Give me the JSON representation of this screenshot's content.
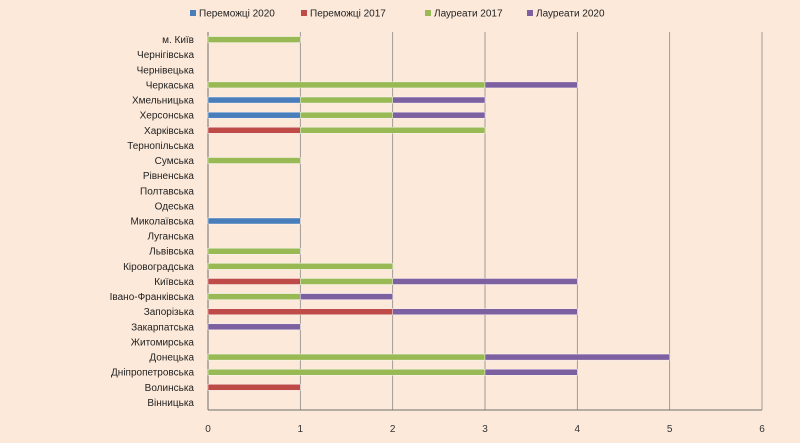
{
  "chart_data": {
    "type": "bar",
    "orientation": "horizontal",
    "stacked": true,
    "categories": [
      "м. Київ",
      "Чернігівська",
      "Чернівецька",
      "Черкаська",
      "Хмельницька",
      "Херсонська",
      "Харківська",
      "Тернопільська",
      "Сумська",
      "Рівненська",
      "Полтавська",
      "Одеська",
      "Миколаївська",
      "Луганська",
      "Львівська",
      "Кіровоградська",
      "Київська",
      "Івано-Франківська",
      "Запорізька",
      "Закарпатська",
      "Житомирська",
      "Донецька",
      "Дніпропетровська",
      "Волинська",
      "Вінницька"
    ],
    "series": [
      {
        "name": "Переможці 2020",
        "color": "#4a7ebb",
        "values": [
          0,
          0,
          0,
          0,
          1,
          1,
          0,
          0,
          0,
          0,
          0,
          0,
          1,
          0,
          0,
          0,
          0,
          0,
          0,
          0,
          0,
          0,
          0,
          0,
          0
        ]
      },
      {
        "name": "Переможці 2017",
        "color": "#be4b48",
        "values": [
          0,
          0,
          0,
          0,
          0,
          0,
          1,
          0,
          0,
          0,
          0,
          0,
          0,
          0,
          0,
          0,
          1,
          0,
          2,
          0,
          0,
          0,
          0,
          1,
          0
        ]
      },
      {
        "name": "Лауреати 2017",
        "color": "#98b954",
        "values": [
          1,
          0,
          0,
          3,
          1,
          1,
          2,
          0,
          1,
          0,
          0,
          0,
          0,
          0,
          1,
          2,
          1,
          1,
          0,
          0,
          0,
          3,
          3,
          0,
          0
        ]
      },
      {
        "name": "Лауреати 2020",
        "color": "#7d60a0",
        "values": [
          0,
          0,
          0,
          1,
          1,
          1,
          0,
          0,
          0,
          0,
          0,
          0,
          0,
          0,
          0,
          0,
          2,
          1,
          2,
          1,
          0,
          2,
          1,
          0,
          0
        ]
      }
    ],
    "xlim": [
      0,
      6
    ],
    "xticks": [
      0,
      1,
      2,
      3,
      4,
      5,
      6
    ],
    "grid": true,
    "legend_position": "top"
  }
}
